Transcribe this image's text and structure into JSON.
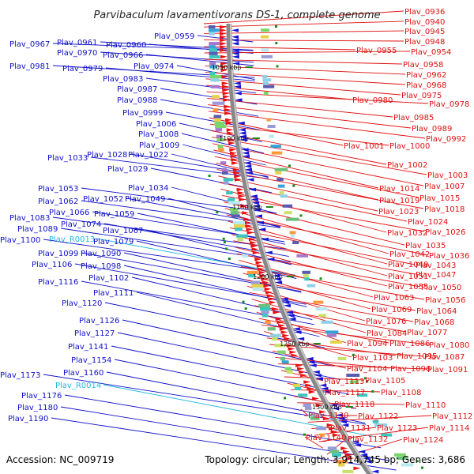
{
  "title": "Parvibaculum lavamentivorans DS-1, complete genome",
  "footer": {
    "accession": "Accession: NC_009719",
    "topology": "Topology: circular; Length: 3,914,745 bp; Genes: 3,686"
  },
  "colors": {
    "left_label": "#1010c8",
    "right_label": "#e01010",
    "rna_label": "#20b8e0",
    "backbone": "#888888",
    "tick": "#1a8a1a"
  },
  "scale_ticks": [
    "1050 kbp",
    "1100 kbp",
    "1150 kbp",
    "1200 kbp",
    "1250 kbp",
    "1300 kbp"
  ],
  "left_labels": [
    {
      "text": "Plav_0959",
      "type": "gene"
    },
    {
      "text": "Plav_0967",
      "type": "gene"
    },
    {
      "text": "Plav_0961",
      "type": "gene"
    },
    {
      "text": "Plav_0960",
      "type": "gene"
    },
    {
      "text": "Plav_0970",
      "type": "gene"
    },
    {
      "text": "Plav_0966",
      "type": "gene"
    },
    {
      "text": "Plav_0981",
      "type": "gene"
    },
    {
      "text": "Plav_0979",
      "type": "gene"
    },
    {
      "text": "Plav_0974",
      "type": "gene"
    },
    {
      "text": "Plav_0983",
      "type": "gene"
    },
    {
      "text": "Plav_0987",
      "type": "gene"
    },
    {
      "text": "Plav_0988",
      "type": "gene"
    },
    {
      "text": "Plav_0999",
      "type": "gene"
    },
    {
      "text": "Plav_1006",
      "type": "gene"
    },
    {
      "text": "Plav_1008",
      "type": "gene"
    },
    {
      "text": "Plav_1009",
      "type": "gene"
    },
    {
      "text": "Plav_1033",
      "type": "gene"
    },
    {
      "text": "Plav_1028",
      "type": "gene"
    },
    {
      "text": "Plav_1022",
      "type": "gene"
    },
    {
      "text": "Plav_1029",
      "type": "gene"
    },
    {
      "text": "Plav_1053",
      "type": "gene"
    },
    {
      "text": "Plav_1034",
      "type": "gene"
    },
    {
      "text": "Plav_1062",
      "type": "gene"
    },
    {
      "text": "Plav_1052",
      "type": "gene"
    },
    {
      "text": "Plav_1049",
      "type": "gene"
    },
    {
      "text": "Plav_1066",
      "type": "gene"
    },
    {
      "text": "Plav_1059",
      "type": "gene"
    },
    {
      "text": "Plav_1083",
      "type": "gene"
    },
    {
      "text": "Plav_1074",
      "type": "gene"
    },
    {
      "text": "Plav_1089",
      "type": "gene"
    },
    {
      "text": "Plav_1067",
      "type": "gene"
    },
    {
      "text": "Plav_1100",
      "type": "gene"
    },
    {
      "text": "Plav_R0013",
      "type": "rna"
    },
    {
      "text": "Plav_1079",
      "type": "gene"
    },
    {
      "text": "Plav_1099",
      "type": "gene"
    },
    {
      "text": "Plav_1090",
      "type": "gene"
    },
    {
      "text": "Plav_1106",
      "type": "gene"
    },
    {
      "text": "Plav_1098",
      "type": "gene"
    },
    {
      "text": "Plav_1102",
      "type": "gene"
    },
    {
      "text": "Plav_1116",
      "type": "gene"
    },
    {
      "text": "Plav_1111",
      "type": "gene"
    },
    {
      "text": "Plav_1120",
      "type": "gene"
    },
    {
      "text": "Plav_1126",
      "type": "gene"
    },
    {
      "text": "Plav_1127",
      "type": "gene"
    },
    {
      "text": "Plav_1141",
      "type": "gene"
    },
    {
      "text": "Plav_1154",
      "type": "gene"
    },
    {
      "text": "Plav_1173",
      "type": "gene"
    },
    {
      "text": "Plav_1160",
      "type": "gene"
    },
    {
      "text": "Plav_R0014",
      "type": "rna"
    },
    {
      "text": "Plav_1176",
      "type": "gene"
    },
    {
      "text": "Plav_1180",
      "type": "gene"
    },
    {
      "text": "Plav_1190",
      "type": "gene"
    }
  ],
  "right_labels": [
    "Plav_0936",
    "Plav_0940",
    "Plav_0945",
    "Plav_0948",
    "Plav_0955",
    "Plav_0954",
    "Plav_0958",
    "Plav_0962",
    "Plav_0968",
    "Plav_0975",
    "Plav_0980",
    "Plav_0978",
    "Plav_0985",
    "Plav_0989",
    "Plav_0992",
    "Plav_1001",
    "Plav_1000",
    "Plav_1002",
    "Plav_1003",
    "Plav_1007",
    "Plav_1014",
    "Plav_1015",
    "Plav_1019",
    "Plav_1018",
    "Plav_1023",
    "Plav_1024",
    "Plav_1032",
    "Plav_1026",
    "Plav_1035",
    "Plav_1042",
    "Plav_1036",
    "Plav_1048",
    "Plav_1043",
    "Plav_1051",
    "Plav_1047",
    "Plav_1055",
    "Plav_1050",
    "Plav_1063",
    "Plav_1056",
    "Plav_1069",
    "Plav_1064",
    "Plav_1076",
    "Plav_1068",
    "Plav_1084",
    "Plav_1077",
    "Plav_1094",
    "Plav_1086",
    "Plav_1080",
    "Plav_1103",
    "Plav_1095",
    "Plav_1087",
    "Plav_1104",
    "Plav_1096",
    "Plav_1091",
    "Plav_1113",
    "Plav_1105",
    "Plav_1117",
    "Plav_1108",
    "Plav_1118",
    "Plav_1110",
    "Plav_1130",
    "Plav_1122",
    "Plav_1112",
    "Plav_1131",
    "Plav_1123",
    "Plav_1114",
    "Plav_1140",
    "Plav_1132",
    "Plav_1124"
  ]
}
